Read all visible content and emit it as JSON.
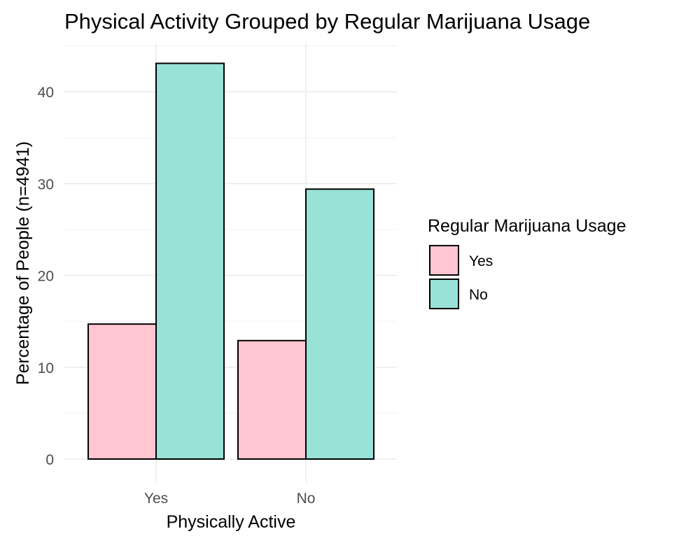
{
  "chart_data": {
    "type": "bar",
    "title": "Physical Activity Grouped by Regular Marijuana Usage",
    "xlabel": "Physically Active",
    "ylabel": "Percentage of People (n=4941)",
    "categories": [
      "Yes",
      "No"
    ],
    "series": [
      {
        "name": "Yes",
        "values": [
          14.7,
          12.9
        ],
        "color": "#ffc5d0"
      },
      {
        "name": "No",
        "values": [
          43.1,
          29.4
        ],
        "color": "#99e2d8"
      }
    ],
    "yticks": [
      0,
      10,
      20,
      30,
      40
    ],
    "ylim": [
      0,
      45
    ],
    "grid": true,
    "legend": {
      "title": "Regular Marijuana Usage",
      "placement": "right"
    }
  }
}
